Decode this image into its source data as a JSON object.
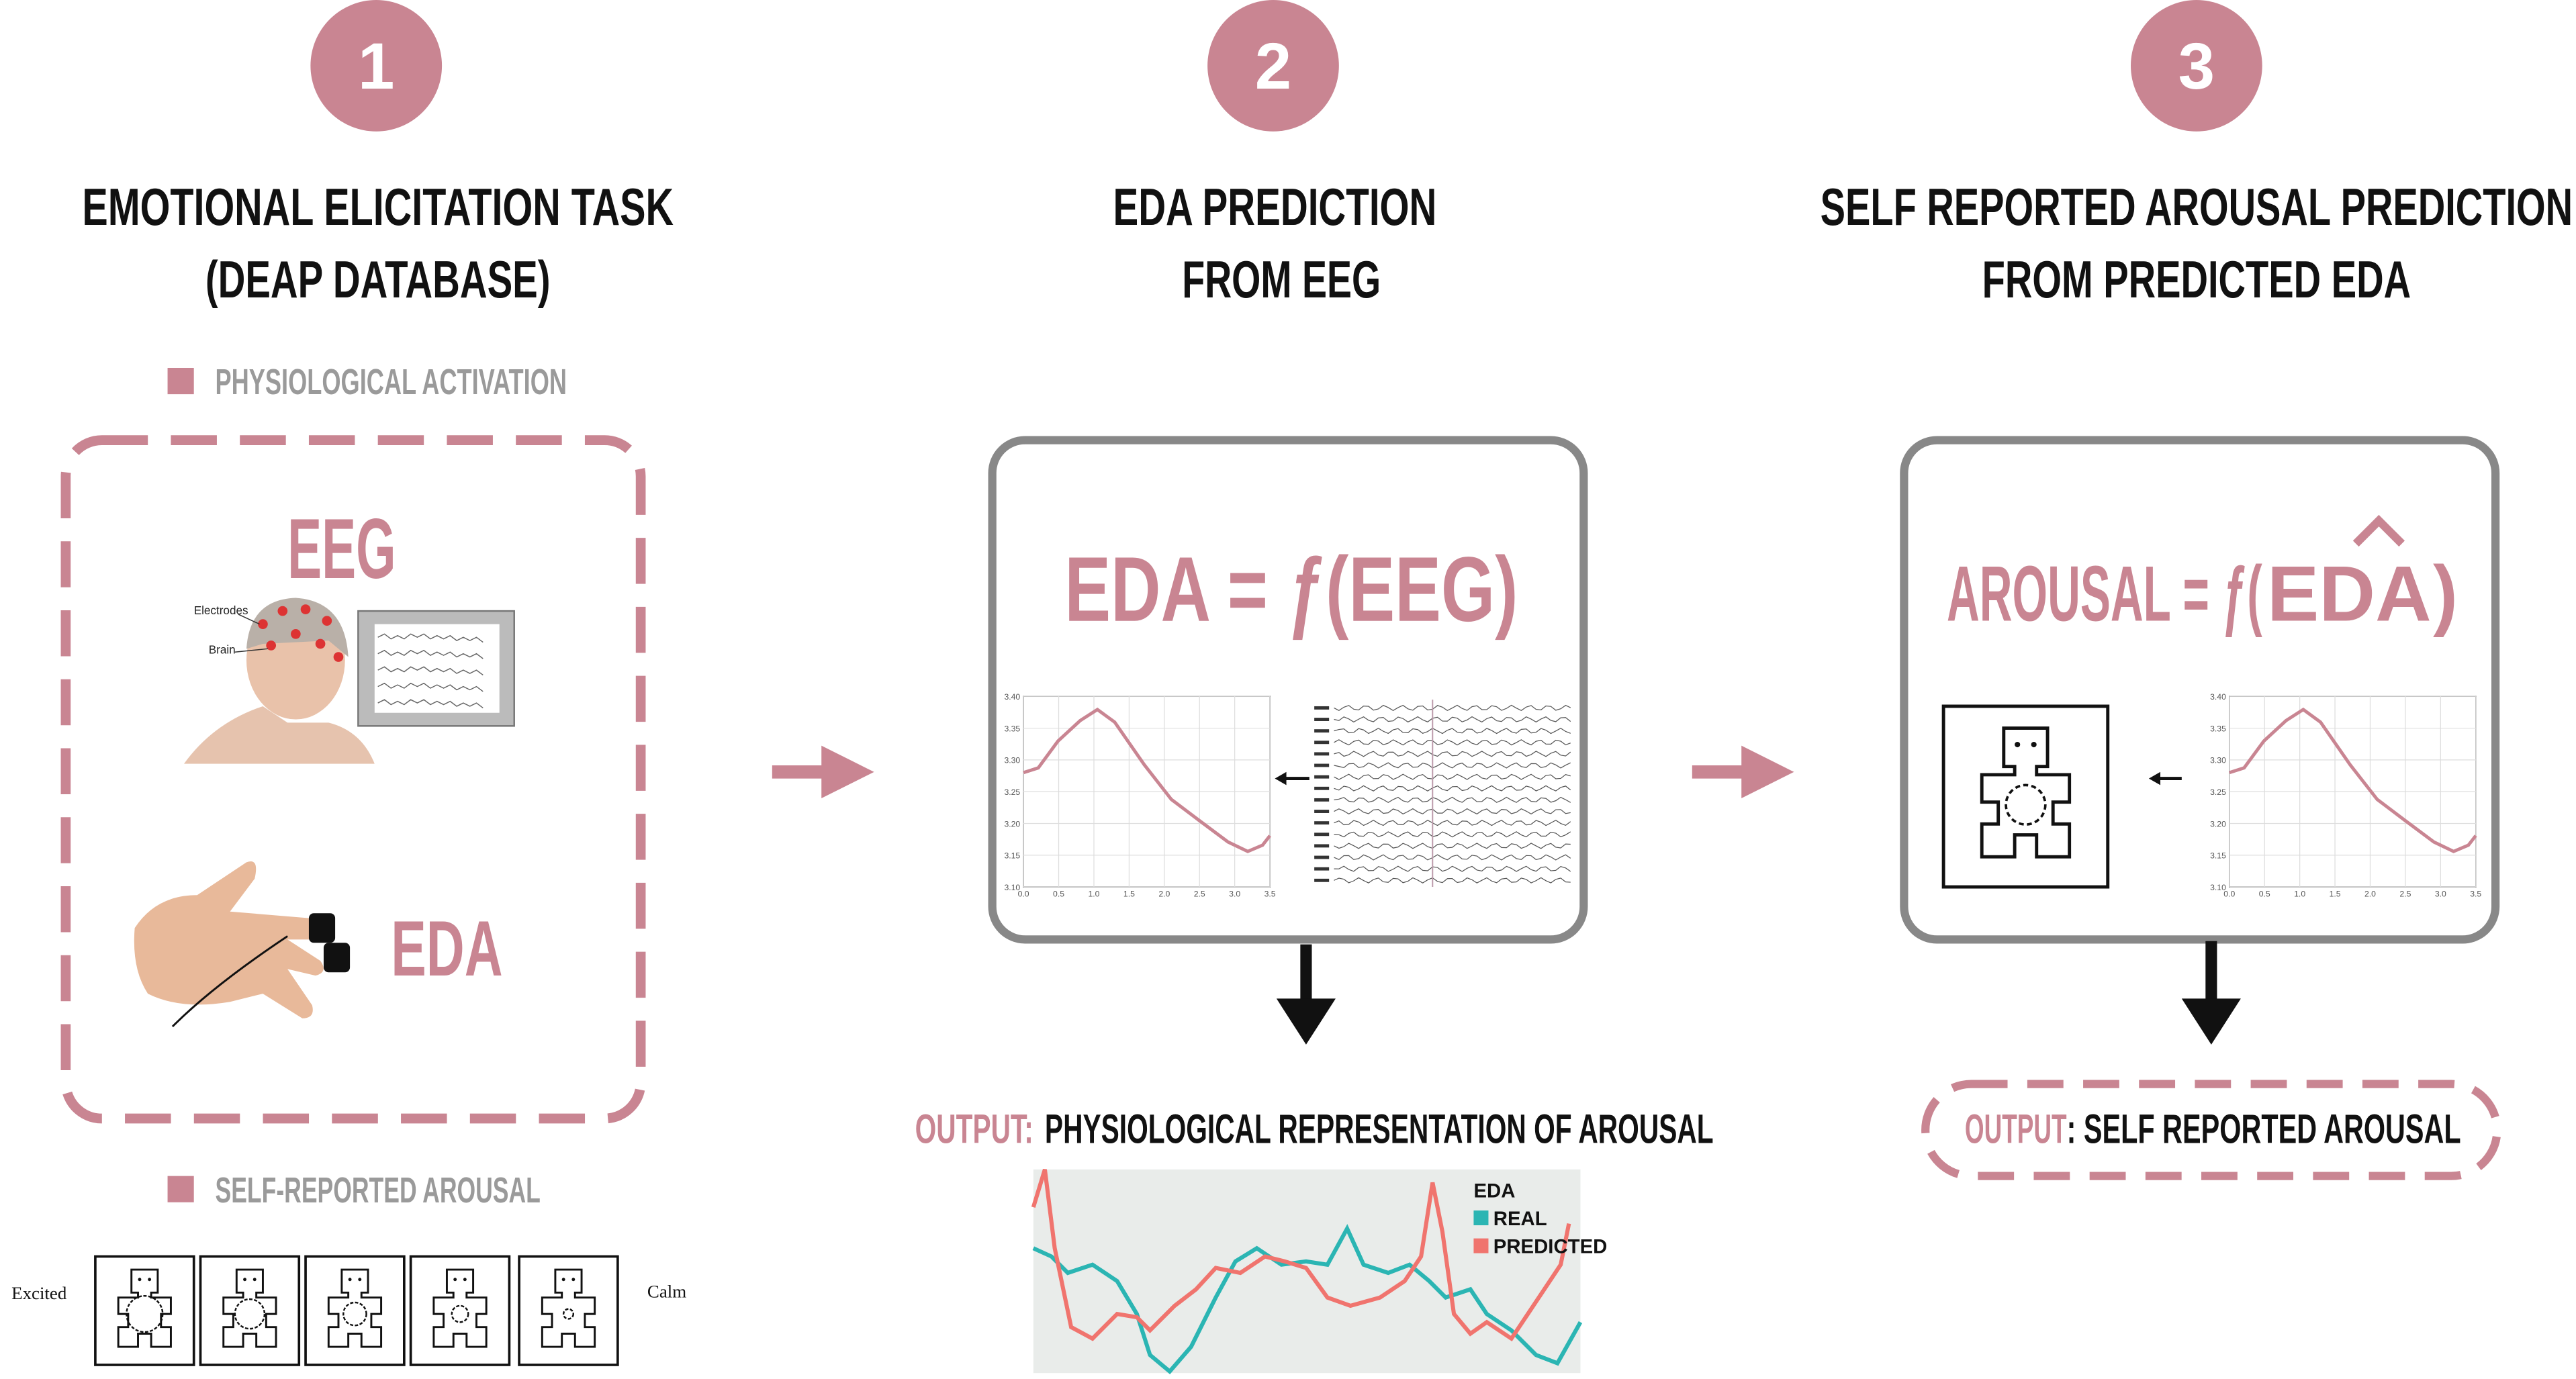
{
  "steps": [
    {
      "number": "1",
      "title": [
        "EMOTIONAL ELICITATION TASK",
        "(DEAP DATABASE)"
      ],
      "legend_top": "PHYSIOLOGICAL ACTIVATION",
      "eeg_label": "EEG",
      "electrodes_label": "Electrodes",
      "brain_label": "Brain",
      "eda_label": "EDA",
      "legend_bottom": "SELF-REPORTED AROUSAL",
      "scale_left": "Excited",
      "scale_right": "Calm"
    },
    {
      "number": "2",
      "title": [
        "EDA PREDICTION",
        "FROM EEG"
      ],
      "formula": "EDA = ƒ(EEG)",
      "mini_chart": {
        "yticks": [
          "3.40",
          "3.35",
          "3.30",
          "3.25",
          "3.20",
          "3.15",
          "3.10"
        ],
        "xticks": [
          "0.0",
          "0.5",
          "1.0",
          "1.5",
          "2.0",
          "2.5",
          "3.0",
          "3.5"
        ]
      },
      "output_prefix": "OUTPUT:",
      "output_text": "PHYSIOLOGICAL REPRESENTATION OF AROUSAL",
      "output_chart": {
        "legend_title": "EDA",
        "series": [
          "REAL",
          "PREDICTED"
        ]
      }
    },
    {
      "number": "3",
      "title": [
        "SELF REPORTED AROUSAL PREDICTION",
        "FROM PREDICTED EDA"
      ],
      "formula_left": "AROUSAL = ƒ(",
      "formula_mid": "EDA",
      "formula_right": ")",
      "mini_chart": {
        "yticks": [
          "3.40",
          "3.35",
          "3.30",
          "3.25",
          "3.20",
          "3.15",
          "3.10"
        ],
        "xticks": [
          "0.0",
          "0.5",
          "1.0",
          "1.5",
          "2.0",
          "2.5",
          "3.0",
          "3.5"
        ]
      },
      "output_prefix": "OUTPUT",
      "output_text": ": SELF REPORTED AROUSAL"
    }
  ]
}
